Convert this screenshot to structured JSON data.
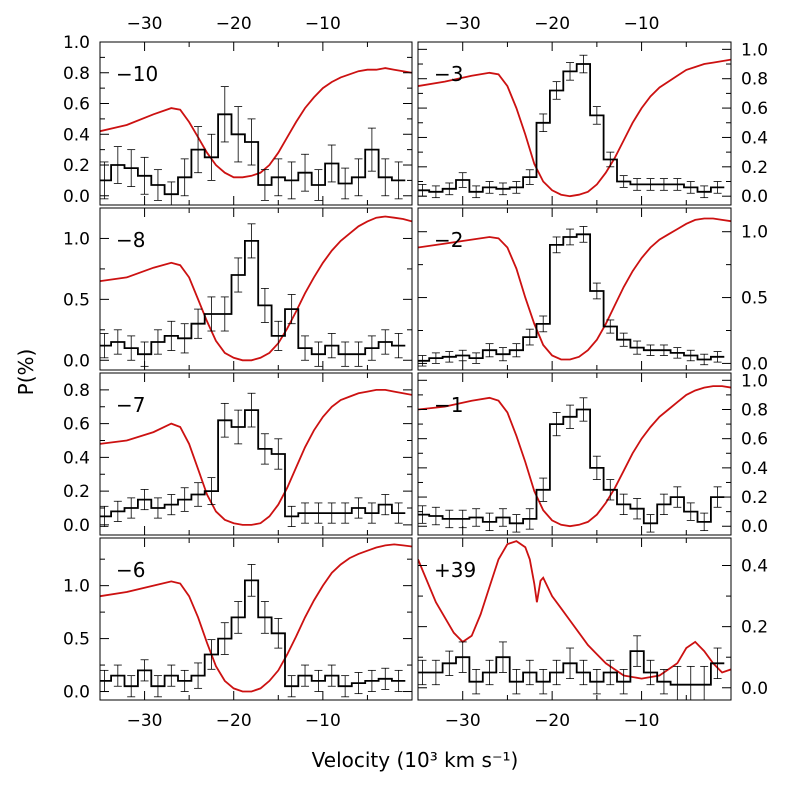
{
  "figure": {
    "xlabel": "Velocity (10³ km s⁻¹)",
    "ylabel": "P(%)",
    "colors": {
      "polarization": "#000000",
      "flux": "#cc1111"
    }
  },
  "chart_data": [
    {
      "type": "line",
      "panel_label": "−10",
      "xlim": [
        -35,
        0
      ],
      "ylim": [
        -0.06,
        1.0
      ],
      "yticks": [
        0.0,
        0.2,
        0.4,
        0.6,
        0.8,
        1.0
      ],
      "y_tick_side": "left",
      "bins": [
        -34.5,
        -33,
        -31.5,
        -30,
        -28.5,
        -27,
        -25.5,
        -24,
        -22.5,
        -21,
        -19.5,
        -18,
        -16.5,
        -15,
        -13.5,
        -12,
        -10.5,
        -9,
        -7.5,
        -6,
        -4.5,
        -3,
        -1.5
      ],
      "p": [
        0.1,
        0.2,
        0.18,
        0.13,
        0.07,
        0.01,
        0.12,
        0.3,
        0.25,
        0.53,
        0.4,
        0.35,
        0.07,
        0.12,
        0.1,
        0.15,
        0.07,
        0.21,
        0.08,
        0.12,
        0.3,
        0.12,
        0.1
      ],
      "err": [
        0.12,
        0.12,
        0.12,
        0.12,
        0.1,
        0.08,
        0.12,
        0.15,
        0.15,
        0.18,
        0.18,
        0.15,
        0.1,
        0.12,
        0.12,
        0.12,
        0.1,
        0.12,
        0.1,
        0.12,
        0.14,
        0.12,
        0.12
      ],
      "flux": {
        "x": [
          -35,
          -32,
          -29,
          -27,
          -26,
          -25,
          -24,
          -23,
          -22,
          -21,
          -20,
          -19,
          -18,
          -17,
          -16,
          -15,
          -14,
          -13,
          -12,
          -11,
          -10,
          -9,
          -8,
          -7,
          -6,
          -5,
          -4,
          -3,
          -2,
          -1,
          0
        ],
        "y": [
          0.42,
          0.46,
          0.53,
          0.57,
          0.56,
          0.48,
          0.38,
          0.28,
          0.2,
          0.15,
          0.12,
          0.12,
          0.13,
          0.15,
          0.2,
          0.28,
          0.38,
          0.48,
          0.57,
          0.64,
          0.7,
          0.74,
          0.77,
          0.79,
          0.81,
          0.82,
          0.82,
          0.83,
          0.82,
          0.81,
          0.8
        ]
      }
    },
    {
      "type": "line",
      "panel_label": "−3",
      "xlim": [
        -35,
        0
      ],
      "ylim": [
        -0.06,
        1.05
      ],
      "yticks": [
        0.0,
        0.2,
        0.4,
        0.6,
        0.8,
        1.0
      ],
      "y_tick_side": "right",
      "bins": [
        -34.5,
        -33,
        -31.5,
        -30,
        -28.5,
        -27,
        -25.5,
        -24,
        -22.5,
        -21,
        -19.5,
        -18,
        -16.5,
        -15,
        -13.5,
        -12,
        -10.5,
        -9,
        -7.5,
        -6,
        -4.5,
        -3,
        -1.5
      ],
      "p": [
        0.04,
        0.03,
        0.05,
        0.11,
        0.03,
        0.06,
        0.05,
        0.06,
        0.13,
        0.5,
        0.72,
        0.85,
        0.9,
        0.55,
        0.25,
        0.1,
        0.08,
        0.08,
        0.08,
        0.08,
        0.06,
        0.03,
        0.06
      ],
      "err": [
        0.04,
        0.04,
        0.04,
        0.05,
        0.04,
        0.04,
        0.04,
        0.04,
        0.05,
        0.06,
        0.06,
        0.06,
        0.06,
        0.06,
        0.05,
        0.04,
        0.04,
        0.04,
        0.04,
        0.04,
        0.04,
        0.04,
        0.04
      ],
      "flux": {
        "x": [
          -35,
          -32,
          -29,
          -27,
          -26,
          -25,
          -24,
          -23,
          -22,
          -21,
          -20,
          -19,
          -18,
          -17,
          -16,
          -15,
          -14,
          -13,
          -12,
          -11,
          -10,
          -9,
          -8,
          -7,
          -6,
          -5,
          -4,
          -3,
          -2,
          -1,
          0
        ],
        "y": [
          0.75,
          0.78,
          0.82,
          0.84,
          0.83,
          0.75,
          0.6,
          0.42,
          0.22,
          0.1,
          0.04,
          0.01,
          0.0,
          0.01,
          0.03,
          0.08,
          0.16,
          0.26,
          0.38,
          0.5,
          0.6,
          0.68,
          0.74,
          0.78,
          0.82,
          0.86,
          0.88,
          0.9,
          0.91,
          0.92,
          0.93
        ]
      }
    },
    {
      "type": "line",
      "panel_label": "−8",
      "xlim": [
        -35,
        0
      ],
      "ylim": [
        -0.08,
        1.25
      ],
      "yticks": [
        0.0,
        0.5,
        1.0
      ],
      "y_tick_side": "left",
      "bins": [
        -34.5,
        -33,
        -31.5,
        -30,
        -28.5,
        -27,
        -25.5,
        -24,
        -22.5,
        -21,
        -19.5,
        -18,
        -16.5,
        -15,
        -13.5,
        -12,
        -10.5,
        -9,
        -7.5,
        -6,
        -4.5,
        -3,
        -1.5
      ],
      "p": [
        0.12,
        0.15,
        0.1,
        0.05,
        0.15,
        0.2,
        0.18,
        0.3,
        0.38,
        0.38,
        0.7,
        0.98,
        0.45,
        0.2,
        0.42,
        0.1,
        0.05,
        0.12,
        0.05,
        0.05,
        0.1,
        0.15,
        0.12
      ],
      "err": [
        0.1,
        0.1,
        0.1,
        0.1,
        0.1,
        0.12,
        0.12,
        0.12,
        0.14,
        0.14,
        0.14,
        0.14,
        0.14,
        0.12,
        0.12,
        0.1,
        0.1,
        0.1,
        0.1,
        0.1,
        0.1,
        0.1,
        0.1
      ],
      "flux": {
        "x": [
          -35,
          -32,
          -29,
          -27,
          -26,
          -25,
          -24,
          -23,
          -22,
          -21,
          -20,
          -19,
          -18,
          -17,
          -16,
          -15,
          -14,
          -13,
          -12,
          -11,
          -10,
          -9,
          -8,
          -7,
          -6,
          -5,
          -4,
          -3,
          -2,
          -1,
          0
        ],
        "y": [
          0.65,
          0.68,
          0.76,
          0.8,
          0.78,
          0.68,
          0.5,
          0.32,
          0.16,
          0.06,
          0.02,
          0.0,
          0.0,
          0.02,
          0.06,
          0.14,
          0.26,
          0.4,
          0.55,
          0.68,
          0.8,
          0.9,
          0.98,
          1.04,
          1.1,
          1.14,
          1.17,
          1.18,
          1.17,
          1.16,
          1.14
        ]
      }
    },
    {
      "type": "line",
      "panel_label": "−2",
      "xlim": [
        -35,
        0
      ],
      "ylim": [
        -0.05,
        1.18
      ],
      "yticks": [
        0.0,
        0.5,
        1.0
      ],
      "y_tick_side": "right",
      "bins": [
        -34.5,
        -33,
        -31.5,
        -30,
        -28.5,
        -27,
        -25.5,
        -24,
        -22.5,
        -21,
        -19.5,
        -18,
        -16.5,
        -15,
        -13.5,
        -12,
        -10.5,
        -9,
        -7.5,
        -6,
        -4.5,
        -3,
        -1.5
      ],
      "p": [
        0.02,
        0.04,
        0.05,
        0.06,
        0.04,
        0.1,
        0.07,
        0.1,
        0.2,
        0.3,
        0.9,
        0.96,
        0.98,
        0.55,
        0.28,
        0.18,
        0.12,
        0.1,
        0.1,
        0.08,
        0.06,
        0.03,
        0.05
      ],
      "err": [
        0.04,
        0.04,
        0.04,
        0.04,
        0.04,
        0.05,
        0.05,
        0.05,
        0.06,
        0.06,
        0.06,
        0.06,
        0.06,
        0.06,
        0.05,
        0.05,
        0.05,
        0.04,
        0.04,
        0.04,
        0.04,
        0.04,
        0.04
      ],
      "flux": {
        "x": [
          -35,
          -32,
          -29,
          -27,
          -26,
          -25,
          -24,
          -23,
          -22,
          -21,
          -20,
          -19,
          -18,
          -17,
          -16,
          -15,
          -14,
          -13,
          -12,
          -11,
          -10,
          -9,
          -8,
          -7,
          -6,
          -5,
          -4,
          -3,
          -2,
          -1,
          0
        ],
        "y": [
          0.88,
          0.91,
          0.94,
          0.96,
          0.95,
          0.88,
          0.72,
          0.5,
          0.3,
          0.14,
          0.06,
          0.03,
          0.03,
          0.05,
          0.1,
          0.18,
          0.3,
          0.44,
          0.58,
          0.7,
          0.8,
          0.88,
          0.94,
          0.98,
          1.02,
          1.06,
          1.09,
          1.1,
          1.1,
          1.09,
          1.08
        ]
      }
    },
    {
      "type": "line",
      "panel_label": "−7",
      "xlim": [
        -35,
        0
      ],
      "ylim": [
        -0.06,
        0.9
      ],
      "yticks": [
        0.0,
        0.2,
        0.4,
        0.6,
        0.8
      ],
      "y_tick_side": "left",
      "bins": [
        -34.5,
        -33,
        -31.5,
        -30,
        -28.5,
        -27,
        -25.5,
        -24,
        -22.5,
        -21,
        -19.5,
        -18,
        -16.5,
        -15,
        -13.5,
        -12,
        -10.5,
        -9,
        -7.5,
        -6,
        -4.5,
        -3,
        -1.5
      ],
      "p": [
        0.05,
        0.08,
        0.1,
        0.15,
        0.1,
        0.12,
        0.15,
        0.18,
        0.2,
        0.62,
        0.58,
        0.68,
        0.45,
        0.42,
        0.05,
        0.07,
        0.07,
        0.07,
        0.07,
        0.1,
        0.07,
        0.12,
        0.07
      ],
      "err": [
        0.06,
        0.06,
        0.06,
        0.06,
        0.06,
        0.06,
        0.07,
        0.07,
        0.08,
        0.1,
        0.1,
        0.1,
        0.09,
        0.09,
        0.06,
        0.06,
        0.06,
        0.06,
        0.06,
        0.06,
        0.06,
        0.06,
        0.06
      ],
      "flux": {
        "x": [
          -35,
          -32,
          -29,
          -27,
          -26,
          -25,
          -24,
          -23,
          -22,
          -21,
          -20,
          -19,
          -18,
          -17,
          -16,
          -15,
          -14,
          -13,
          -12,
          -11,
          -10,
          -9,
          -8,
          -7,
          -6,
          -5,
          -4,
          -3,
          -2,
          -1,
          0
        ],
        "y": [
          0.48,
          0.5,
          0.55,
          0.6,
          0.58,
          0.48,
          0.33,
          0.18,
          0.08,
          0.03,
          0.01,
          0.0,
          0.0,
          0.01,
          0.05,
          0.12,
          0.22,
          0.34,
          0.46,
          0.56,
          0.64,
          0.7,
          0.74,
          0.76,
          0.78,
          0.79,
          0.8,
          0.8,
          0.79,
          0.78,
          0.77
        ]
      }
    },
    {
      "type": "line",
      "panel_label": "−1",
      "xlim": [
        -35,
        0
      ],
      "ylim": [
        -0.06,
        1.05
      ],
      "yticks": [
        0.0,
        0.2,
        0.4,
        0.6,
        0.8,
        1.0
      ],
      "y_tick_side": "right",
      "bins": [
        -34.5,
        -33,
        -31.5,
        -30,
        -28.5,
        -27,
        -25.5,
        -24,
        -22.5,
        -21,
        -19.5,
        -18,
        -16.5,
        -15,
        -13.5,
        -12,
        -10.5,
        -9,
        -7.5,
        -6,
        -4.5,
        -3,
        -1.5
      ],
      "p": [
        0.08,
        0.07,
        0.05,
        0.05,
        0.06,
        0.03,
        0.06,
        0.02,
        0.05,
        0.25,
        0.7,
        0.75,
        0.8,
        0.4,
        0.25,
        0.15,
        0.12,
        0.02,
        0.15,
        0.2,
        0.1,
        0.03,
        0.2
      ],
      "err": [
        0.06,
        0.06,
        0.06,
        0.06,
        0.06,
        0.06,
        0.06,
        0.06,
        0.07,
        0.08,
        0.08,
        0.08,
        0.08,
        0.08,
        0.07,
        0.07,
        0.07,
        0.06,
        0.07,
        0.07,
        0.06,
        0.06,
        0.07
      ],
      "flux": {
        "x": [
          -35,
          -32,
          -29,
          -27,
          -26,
          -25,
          -24,
          -23,
          -22,
          -21,
          -20,
          -19,
          -18,
          -17,
          -16,
          -15,
          -14,
          -13,
          -12,
          -11,
          -10,
          -9,
          -8,
          -7,
          -6,
          -5,
          -4,
          -3,
          -2,
          -1,
          0
        ],
        "y": [
          0.8,
          0.82,
          0.86,
          0.88,
          0.86,
          0.78,
          0.62,
          0.44,
          0.24,
          0.11,
          0.04,
          0.01,
          0.0,
          0.01,
          0.03,
          0.08,
          0.16,
          0.26,
          0.38,
          0.5,
          0.6,
          0.68,
          0.75,
          0.8,
          0.85,
          0.9,
          0.93,
          0.95,
          0.96,
          0.96,
          0.95
        ]
      }
    },
    {
      "type": "line",
      "panel_label": "−6",
      "xlim": [
        -35,
        0
      ],
      "ylim": [
        -0.08,
        1.45
      ],
      "yticks": [
        0.0,
        0.5,
        1.0
      ],
      "y_tick_side": "left",
      "bins": [
        -34.5,
        -33,
        -31.5,
        -30,
        -28.5,
        -27,
        -25.5,
        -24,
        -22.5,
        -21,
        -19.5,
        -18,
        -16.5,
        -15,
        -13.5,
        -12,
        -10.5,
        -9,
        -7.5,
        -6,
        -4.5,
        -3,
        -1.5
      ],
      "p": [
        0.1,
        0.15,
        0.05,
        0.2,
        0.05,
        0.15,
        0.1,
        0.15,
        0.35,
        0.5,
        0.7,
        1.05,
        0.7,
        0.55,
        0.05,
        0.15,
        0.1,
        0.15,
        0.05,
        0.08,
        0.1,
        0.12,
        0.1
      ],
      "err": [
        0.1,
        0.1,
        0.1,
        0.1,
        0.1,
        0.1,
        0.1,
        0.12,
        0.14,
        0.15,
        0.15,
        0.15,
        0.15,
        0.14,
        0.1,
        0.1,
        0.1,
        0.1,
        0.1,
        0.1,
        0.1,
        0.1,
        0.1
      ],
      "flux": {
        "x": [
          -35,
          -32,
          -29,
          -27,
          -26,
          -25,
          -24,
          -23,
          -22,
          -21,
          -20,
          -19,
          -18,
          -17,
          -16,
          -15,
          -14,
          -13,
          -12,
          -11,
          -10,
          -9,
          -8,
          -7,
          -6,
          -5,
          -4,
          -3,
          -2,
          -1,
          0
        ],
        "y": [
          0.9,
          0.94,
          1.0,
          1.04,
          1.02,
          0.9,
          0.7,
          0.46,
          0.24,
          0.1,
          0.03,
          0.0,
          0.0,
          0.03,
          0.1,
          0.2,
          0.35,
          0.52,
          0.7,
          0.86,
          1.0,
          1.12,
          1.2,
          1.26,
          1.3,
          1.33,
          1.36,
          1.38,
          1.39,
          1.38,
          1.37
        ]
      }
    },
    {
      "type": "line",
      "panel_label": "+39",
      "xlim": [
        -35,
        0
      ],
      "ylim": [
        -0.04,
        0.49
      ],
      "yticks": [
        0.0,
        0.2,
        0.4
      ],
      "y_tick_side": "right",
      "bins": [
        -34.5,
        -33,
        -31.5,
        -30,
        -28.5,
        -27,
        -25.5,
        -24,
        -22.5,
        -21,
        -19.5,
        -18,
        -16.5,
        -15,
        -13.5,
        -12,
        -10.5,
        -9,
        -7.5,
        -6,
        -4.5,
        -3,
        -1.5
      ],
      "p": [
        0.05,
        0.05,
        0.08,
        0.1,
        0.02,
        0.05,
        0.1,
        0.02,
        0.05,
        0.02,
        0.05,
        0.08,
        0.05,
        0.02,
        0.05,
        0.02,
        0.12,
        0.05,
        0.02,
        0.01,
        0.01,
        0.01,
        0.08
      ],
      "err": [
        0.04,
        0.04,
        0.04,
        0.05,
        0.04,
        0.04,
        0.05,
        0.04,
        0.04,
        0.04,
        0.04,
        0.05,
        0.04,
        0.04,
        0.04,
        0.04,
        0.05,
        0.04,
        0.04,
        0.06,
        0.06,
        0.06,
        0.05
      ],
      "flux": {
        "x": [
          -35,
          -33,
          -31,
          -30,
          -29,
          -28,
          -27,
          -26,
          -25,
          -24,
          -23,
          -22.5,
          -22,
          -21.7,
          -21.3,
          -21,
          -20,
          -19,
          -18,
          -17,
          -16,
          -15,
          -14,
          -13,
          -12,
          -10,
          -8,
          -6,
          -5,
          -4,
          -3,
          -2,
          -1,
          0
        ],
        "y": [
          0.42,
          0.28,
          0.18,
          0.15,
          0.17,
          0.24,
          0.33,
          0.42,
          0.47,
          0.48,
          0.46,
          0.42,
          0.34,
          0.28,
          0.35,
          0.36,
          0.3,
          0.26,
          0.22,
          0.18,
          0.14,
          0.11,
          0.08,
          0.06,
          0.04,
          0.03,
          0.04,
          0.08,
          0.13,
          0.15,
          0.12,
          0.08,
          0.05,
          0.06
        ]
      }
    }
  ],
  "top_axis_ticks": [
    -30,
    -20,
    -10
  ],
  "bottom_axis_ticks": [
    -30,
    -20,
    -10
  ]
}
